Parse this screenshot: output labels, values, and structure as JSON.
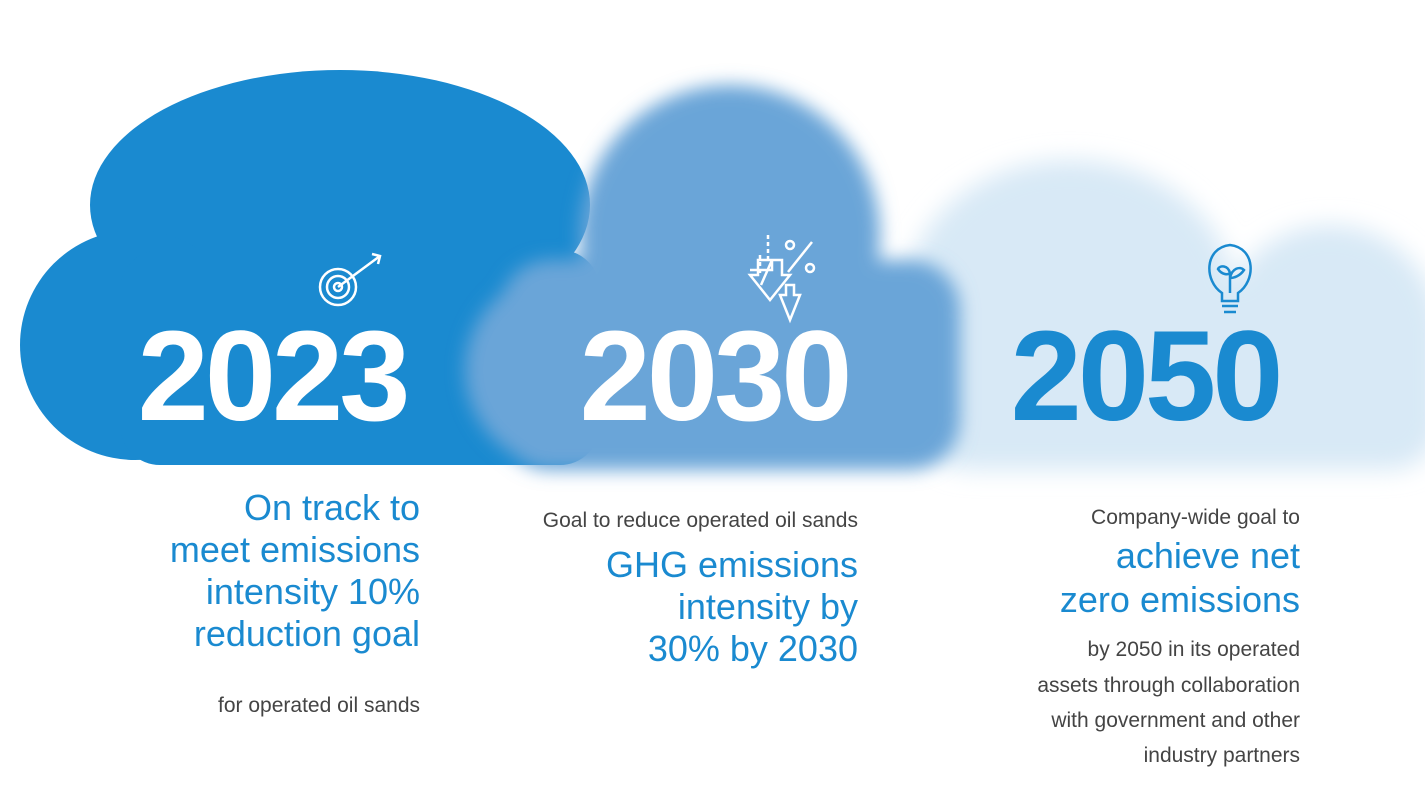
{
  "items": [
    {
      "year": "2023",
      "headline": [
        "On track to",
        "meet emissions",
        "intensity 10%",
        "reduction goal"
      ],
      "body": [
        "for operated oil sands"
      ]
    },
    {
      "year": "2030",
      "lead": [
        "Goal to reduce operated oil sands"
      ],
      "headline": [
        "GHG emissions",
        "intensity by",
        "30% by 2030"
      ]
    },
    {
      "year": "2050",
      "lead": [
        "Company-wide goal to"
      ],
      "headline": [
        "achieve net",
        "zero emissions"
      ],
      "body": [
        "by 2050 in its operated",
        "assets through collaboration",
        "with government and other",
        "industry partners"
      ]
    }
  ]
}
